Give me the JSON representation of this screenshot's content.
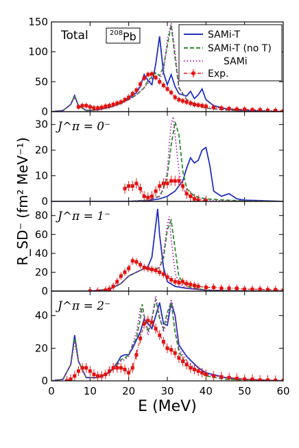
{
  "chart_data": {
    "type": "line",
    "xlabel": "E (MeV)",
    "ylabel": "R_SD⁻ (fm² MeV⁻¹)",
    "xlim": [
      0,
      60
    ],
    "xticks": [
      "0",
      "10",
      "20",
      "30",
      "40",
      "50",
      "60"
    ],
    "legend": {
      "placement": "top-right (top panel)",
      "entries": [
        {
          "label": "SAMi-T",
          "color": "#1f2fbf",
          "style": "solid"
        },
        {
          "label": "SAMi-T (no T)",
          "color": "#2e8b2e",
          "style": "dashed"
        },
        {
          "label": "SAMi",
          "color": "#b020b0",
          "style": "dotted"
        },
        {
          "label": "Exp.",
          "color": "#e51010",
          "style": "dash-dot with square markers and error bars"
        }
      ]
    },
    "panels": [
      {
        "id": "total",
        "title": "Total",
        "nucleus_label": "208Pb",
        "ylim": [
          0,
          150
        ],
        "yticks": [
          "0",
          "50",
          "100",
          "150"
        ],
        "series": [
          {
            "name": "SAMi-T",
            "x": [
              0,
              3,
              5,
              6,
              7,
              9,
              12,
              15,
              18,
              20,
              22,
              23,
              24,
              25,
              26,
              27,
              28,
              29,
              30,
              31,
              32,
              33,
              35,
              36,
              37,
              38,
              39,
              40,
              42,
              45,
              50,
              55,
              60
            ],
            "y": [
              0,
              2,
              12,
              27,
              10,
              2,
              3,
              7,
              14,
              22,
              32,
              42,
              62,
              52,
              45,
              80,
              126,
              65,
              45,
              62,
              42,
              30,
              26,
              34,
              22,
              28,
              38,
              20,
              10,
              5,
              2,
              1,
              0
            ]
          },
          {
            "name": "SAMi-T (no T)",
            "x": [
              0,
              3,
              5,
              6,
              7,
              9,
              12,
              15,
              18,
              20,
              22,
              24,
              25,
              26,
              27,
              28,
              29,
              30,
              31,
              32,
              33,
              35,
              38,
              40,
              45,
              50,
              60
            ],
            "y": [
              0,
              2,
              12,
              26,
              10,
              2,
              3,
              7,
              14,
              20,
              28,
              40,
              52,
              58,
              65,
              60,
              75,
              110,
              145,
              90,
              40,
              20,
              10,
              6,
              3,
              1,
              0
            ]
          },
          {
            "name": "SAMi",
            "x": [
              0,
              3,
              5,
              6,
              7,
              9,
              12,
              15,
              18,
              20,
              22,
              24,
              26,
              27,
              28,
              29,
              30,
              31,
              32,
              33,
              35,
              38,
              40,
              45,
              50,
              60
            ],
            "y": [
              0,
              2,
              12,
              24,
              10,
              2,
              3,
              7,
              14,
              20,
              28,
              40,
              55,
              60,
              55,
              65,
              120,
              148,
              100,
              40,
              20,
              10,
              6,
              3,
              1,
              0
            ]
          },
          {
            "name": "Exp.",
            "x": [
              7,
              8,
              9,
              10,
              11,
              12,
              13,
              14,
              15,
              16,
              17,
              18,
              19,
              20,
              21,
              22,
              23,
              24,
              25,
              26,
              27,
              28,
              29,
              30,
              31,
              32,
              33,
              34,
              35,
              36,
              37,
              38,
              39,
              40,
              42,
              44,
              46,
              48,
              50,
              52,
              54,
              56,
              58,
              60
            ],
            "y": [
              8,
              10,
              10,
              8,
              6,
              6,
              7,
              9,
              10,
              12,
              14,
              16,
              20,
              24,
              30,
              36,
              46,
              56,
              62,
              63,
              57,
              50,
              44,
              38,
              32,
              24,
              20,
              18,
              16,
              14,
              12,
              11,
              10,
              9,
              7,
              6,
              5,
              4,
              4,
              3,
              3,
              2,
              2,
              1
            ],
            "yerr": 5
          }
        ]
      },
      {
        "id": "j0",
        "title": "J^π = 0⁻",
        "ylim": [
          0,
          35
        ],
        "yticks": [
          "0",
          "10",
          "20",
          "30"
        ],
        "series": [
          {
            "name": "SAMi-T",
            "x": [
              0,
              20,
              25,
              28,
              30,
              32,
              33,
              34,
              35,
              36,
              37,
              38,
              39,
              40,
              41,
              42,
              44,
              46,
              48,
              50,
              60
            ],
            "y": [
              0,
              0,
              0.3,
              1,
              2,
              4,
              6,
              8,
              13,
              17,
              15,
              16,
              20,
              21,
              14,
              4,
              2,
              3,
              1,
              0.5,
              0
            ]
          },
          {
            "name": "SAMi-T (no T)",
            "x": [
              0,
              20,
              25,
              28,
              29,
              30,
              31,
              32,
              33,
              34,
              35,
              37,
              40,
              45,
              50,
              60
            ],
            "y": [
              0,
              0,
              0.5,
              2,
              5,
              10,
              22,
              31,
              26,
              12,
              5,
              2,
              1,
              0.5,
              0.2,
              0
            ]
          },
          {
            "name": "SAMi",
            "x": [
              0,
              20,
              25,
              28,
              29,
              30,
              30.5,
              31,
              31.5,
              32,
              33,
              34,
              35,
              37,
              40,
              45,
              60
            ],
            "y": [
              0,
              0,
              0.5,
              2,
              5,
              12,
              22,
              30,
              33,
              26,
              12,
              5,
              3,
              1.5,
              0.5,
              0.2,
              0
            ]
          },
          {
            "name": "Exp.",
            "x": [
              19,
              20,
              21,
              22,
              23,
              24,
              25,
              26,
              27,
              28,
              29,
              30,
              31,
              32,
              33,
              34,
              35,
              36,
              37,
              38,
              40
            ],
            "y": [
              5,
              6,
              6,
              7,
              5,
              2,
              1.5,
              2,
              4,
              6,
              7,
              7,
              8,
              8,
              8,
              6,
              3,
              2,
              1,
              0.5,
              0.3
            ],
            "yerr": 2
          }
        ]
      },
      {
        "id": "j1",
        "title": "J^π = 1⁻",
        "ylim": [
          0,
          95
        ],
        "yticks": [
          "0",
          "20",
          "40",
          "60",
          "80"
        ],
        "series": [
          {
            "name": "SAMi-T",
            "x": [
              0,
              10,
              15,
              18,
              20,
              22,
              23,
              24,
              25,
              26,
              27,
              27.5,
              28,
              29,
              30,
              32,
              35,
              40,
              45,
              50,
              60
            ],
            "y": [
              0,
              0,
              2,
              8,
              16,
              20,
              22,
              24,
              26,
              36,
              70,
              87,
              60,
              25,
              10,
              5,
              3,
              1,
              0.5,
              0.2,
              0
            ]
          },
          {
            "name": "SAMi-T (no T)",
            "x": [
              0,
              10,
              15,
              18,
              20,
              22,
              24,
              26,
              28,
              29,
              30,
              31,
              32,
              33,
              35,
              40,
              50,
              60
            ],
            "y": [
              0,
              0,
              2,
              8,
              16,
              20,
              24,
              22,
              25,
              35,
              65,
              75,
              45,
              15,
              5,
              1,
              0.2,
              0
            ]
          },
          {
            "name": "SAMi",
            "x": [
              0,
              10,
              15,
              18,
              20,
              22,
              24,
              26,
              28,
              29,
              30,
              30.5,
              31,
              32,
              33,
              35,
              40,
              50,
              60
            ],
            "y": [
              0,
              0,
              2,
              8,
              16,
              20,
              24,
              22,
              25,
              40,
              70,
              79,
              55,
              20,
              8,
              3,
              1,
              0.2,
              0
            ]
          },
          {
            "name": "Exp.",
            "x": [
              10,
              12,
              14,
              15,
              16,
              17,
              18,
              19,
              20,
              21,
              22,
              23,
              24,
              25,
              26,
              27,
              28,
              29,
              30,
              31,
              32,
              33,
              34,
              35,
              36,
              37,
              38,
              40,
              42,
              44,
              46,
              48,
              50,
              52,
              54,
              56,
              58,
              60
            ],
            "y": [
              0,
              0,
              1,
              2,
              5,
              10,
              16,
              20,
              24,
              32,
              31,
              28,
              25,
              24,
              23,
              22,
              20,
              18,
              15,
              12,
              10,
              9,
              10,
              8,
              7,
              6,
              5,
              4,
              4,
              3,
              3,
              3,
              2,
              2,
              2,
              1.5,
              1.5,
              1
            ],
            "yerr": 4
          }
        ]
      },
      {
        "id": "j2",
        "title": "J^π = 2⁻",
        "ylim": [
          0,
          55
        ],
        "yticks": [
          "0",
          "20",
          "40"
        ],
        "series": [
          {
            "name": "SAMi-T",
            "x": [
              0,
              3,
              5,
              6,
              7,
              9,
              12,
              15,
              17,
              18,
              19,
              20,
              21,
              22,
              23,
              24,
              25,
              26,
              27,
              28,
              29,
              30,
              31,
              32,
              33,
              35,
              38,
              40,
              45,
              50,
              55,
              60
            ],
            "y": [
              0,
              1,
              10,
              28,
              12,
              2,
              2,
              5,
              11,
              15,
              16,
              16,
              20,
              25,
              30,
              38,
              35,
              32,
              40,
              48,
              35,
              34,
              48,
              40,
              22,
              15,
              8,
              5,
              2,
              1,
              0.5,
              0
            ]
          },
          {
            "name": "SAMi-T (no T)",
            "x": [
              0,
              3,
              5,
              6,
              7,
              9,
              12,
              15,
              17,
              18,
              19,
              20,
              21,
              22,
              23,
              23.5,
              24,
              25,
              26,
              27,
              28,
              29,
              30,
              31,
              32,
              33,
              35,
              38,
              40,
              45,
              50,
              60
            ],
            "y": [
              0,
              1,
              10,
              26,
              12,
              2,
              2,
              5,
              10,
              13,
              14,
              16,
              22,
              26,
              38,
              47,
              40,
              30,
              38,
              50,
              38,
              32,
              42,
              48,
              30,
              18,
              10,
              6,
              3,
              1,
              0.5,
              0
            ]
          },
          {
            "name": "SAMi",
            "x": [
              0,
              3,
              5,
              6,
              7,
              9,
              12,
              15,
              17,
              18,
              19,
              20,
              21,
              22,
              23,
              24,
              25,
              26,
              27,
              28,
              29,
              30,
              31,
              32,
              33,
              35,
              38,
              40,
              45,
              50,
              60
            ],
            "y": [
              0,
              1,
              10,
              24,
              12,
              2,
              2,
              5,
              9,
              12,
              13,
              15,
              22,
              30,
              44,
              40,
              28,
              38,
              52,
              40,
              30,
              38,
              50,
              40,
              20,
              12,
              6,
              4,
              2,
              1,
              0
            ]
          },
          {
            "name": "Exp.",
            "x": [
              4,
              5,
              6,
              7,
              8,
              9,
              10,
              11,
              12,
              13,
              14,
              15,
              16,
              17,
              18,
              19,
              20,
              21,
              22,
              23,
              24,
              25,
              26,
              27,
              28,
              29,
              30,
              31,
              32,
              33,
              34,
              35,
              36,
              37,
              38,
              39,
              40,
              42,
              44,
              46,
              48,
              50,
              52,
              54,
              56,
              58,
              60
            ],
            "y": [
              0,
              1,
              3,
              6,
              8,
              8,
              6,
              4,
              3,
              3,
              4,
              6,
              8,
              8,
              8,
              7,
              5,
              8,
              16,
              26,
              35,
              37,
              36,
              32,
              28,
              24,
              20,
              19,
              17,
              14,
              12,
              10,
              8,
              7,
              6,
              5,
              4,
              3,
              2.5,
              2,
              1.5,
              1,
              1,
              0.5,
              0.5,
              0.3,
              0.2
            ],
            "yerr": 3
          }
        ]
      }
    ]
  }
}
